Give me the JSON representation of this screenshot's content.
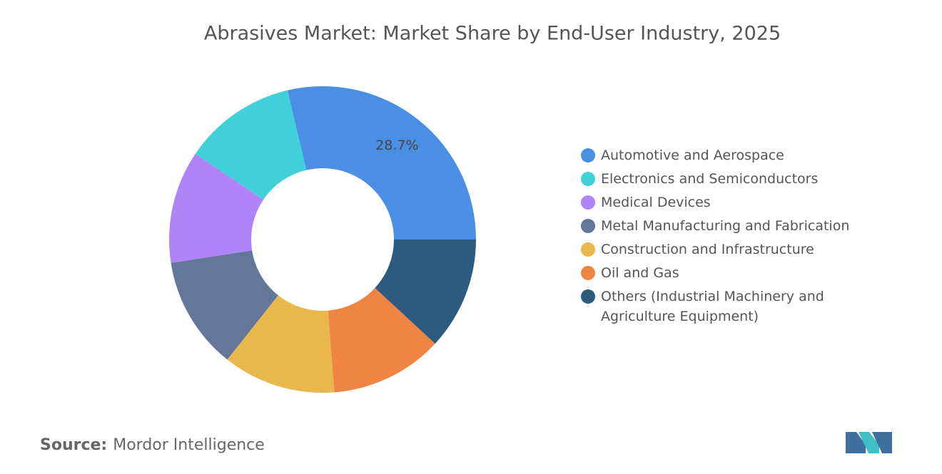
{
  "chart_data": {
    "type": "donut",
    "title": "Abrasives Market: Market Share by End-User Industry, 2025",
    "categories": [
      "Automotive and Aerospace",
      "Electronics and Semiconductors",
      "Medical Devices",
      "Metal Manufacturing and Fabrication",
      "Construction and Infrastructure",
      "Oil and Gas",
      "Others (Industrial Machinery and Agriculture Equipment)"
    ],
    "values": [
      28.7,
      11.9,
      11.9,
      11.9,
      11.9,
      11.9,
      11.9
    ],
    "value_labels": [
      "28.7%",
      null,
      null,
      null,
      null,
      null,
      null
    ],
    "colors": [
      "#4a8fe3",
      "#41d0d9",
      "#b084f6",
      "#657798",
      "#e9b84c",
      "#f08442",
      "#2d5b80"
    ]
  },
  "footer": {
    "source_label": "Source:",
    "source": "Mordor Intelligence"
  }
}
